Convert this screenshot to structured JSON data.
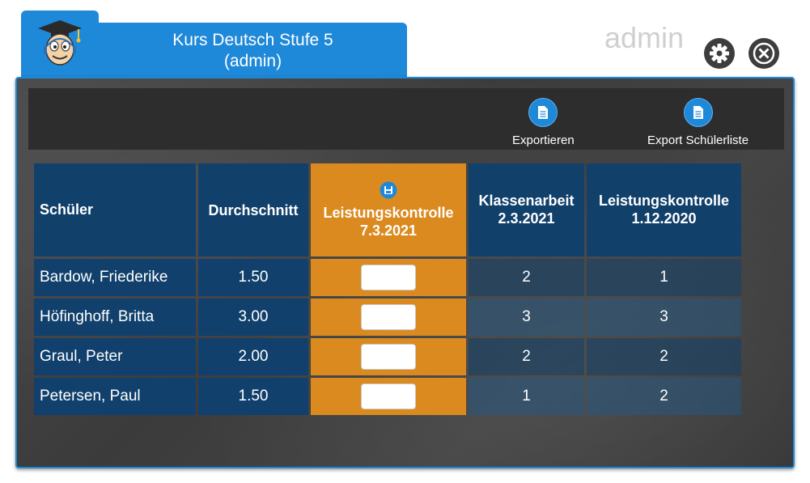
{
  "course": {
    "title_line1": "Kurs Deutsch Stufe 5",
    "title_line2": "(admin)"
  },
  "user": {
    "name": "admin"
  },
  "header_icons": {
    "settings": "gear-icon",
    "close": "close-icon",
    "logo": "student-mascot-icon"
  },
  "toolbar": {
    "export_label": "Exportieren",
    "export_students_label": "Export Schülerliste"
  },
  "table": {
    "headers": {
      "student": "Schüler",
      "average": "Durchschnitt",
      "current_test_line1": "Leistungskontrolle",
      "current_test_line2": "7.3.2021",
      "exam_line1": "Klassenarbeit",
      "exam_line2": "2.3.2021",
      "old_test_line1": "Leistungskontrolle",
      "old_test_line2": "1.12.2020"
    },
    "rows": [
      {
        "name": "Bardow, Friederike",
        "average": "1.50",
        "current": "",
        "exam": "2",
        "old_test": "1"
      },
      {
        "name": "Höfinghoff, Britta",
        "average": "3.00",
        "current": "",
        "exam": "3",
        "old_test": "3"
      },
      {
        "name": "Graul, Peter",
        "average": "2.00",
        "current": "",
        "exam": "2",
        "old_test": "2"
      },
      {
        "name": "Petersen, Paul",
        "average": "1.50",
        "current": "",
        "exam": "1",
        "old_test": "2"
      }
    ]
  },
  "colors": {
    "accent_blue": "#1e88d9",
    "header_navy": "#11406b",
    "active_orange": "#db8a1f",
    "chalkboard": "#3f3f3f"
  }
}
